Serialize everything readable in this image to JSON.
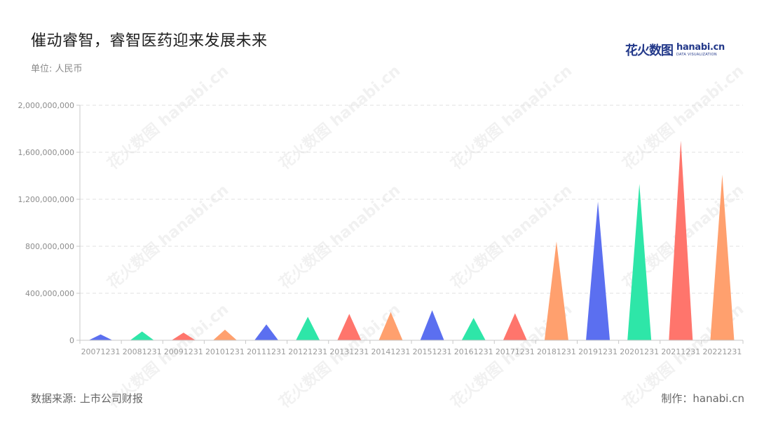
{
  "title": "催动睿智，睿智医药迎来发展未来",
  "subtitle": "单位: 人民币",
  "logo": {
    "cn": "花火数图",
    "en": "hanabi.cn",
    "tagline": "DATA VISUALIZATION"
  },
  "footer": {
    "source": "数据来源: 上市公司财报",
    "credit": "制作：hanabi.cn"
  },
  "watermark": "花火数图 hanabi.cn",
  "colors": {
    "blue": "#5b6ff0",
    "green": "#2ee6a8",
    "red": "#ff756c",
    "orange": "#ffa06e"
  },
  "chart_data": {
    "type": "bar",
    "title": "催动睿智，睿智医药迎来发展未来",
    "ylabel": "",
    "xlabel": "",
    "ylim": [
      0,
      2000000000
    ],
    "yticks": [
      0,
      400000000,
      800000000,
      1200000000,
      1600000000,
      2000000000
    ],
    "ytick_labels": [
      "0",
      "400,000,000",
      "800,000,000",
      "1,200,000,000",
      "1,600,000,000",
      "2,000,000,000"
    ],
    "grid": true,
    "categories": [
      "20071231",
      "20081231",
      "20091231",
      "20101231",
      "20111231",
      "20121231",
      "20131231",
      "20141231",
      "20151231",
      "20161231",
      "20171231",
      "20181231",
      "20191231",
      "20201231",
      "20211231",
      "20221231"
    ],
    "values": [
      50000000,
      75000000,
      65000000,
      90000000,
      135000000,
      200000000,
      225000000,
      240000000,
      255000000,
      190000000,
      230000000,
      840000000,
      1180000000,
      1330000000,
      1700000000,
      1410000000
    ],
    "bar_colors": [
      "#5b6ff0",
      "#2ee6a8",
      "#ff756c",
      "#ffa06e",
      "#5b6ff0",
      "#2ee6a8",
      "#ff756c",
      "#ffa06e",
      "#5b6ff0",
      "#2ee6a8",
      "#ff756c",
      "#ffa06e",
      "#5b6ff0",
      "#2ee6a8",
      "#ff756c",
      "#ffa06e"
    ]
  }
}
